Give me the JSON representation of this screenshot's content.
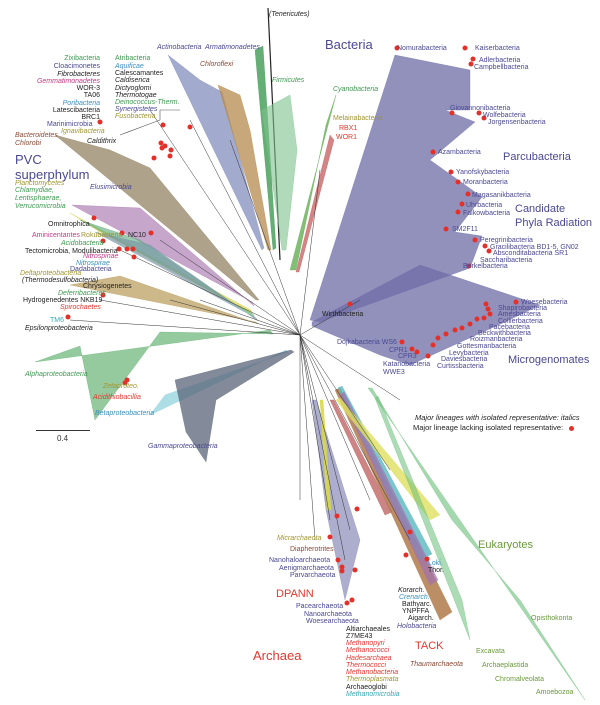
{
  "colors": {
    "purple": "#4a4893",
    "red": "#e03a2e",
    "green": "#3f9a52",
    "olive": "#a09530",
    "brown": "#8b4a36",
    "magenta": "#c43a86",
    "blue": "#3b8fbf",
    "black": "#222222",
    "teal": "#3aa8b8",
    "euk": "#6a9a3a",
    "dot": "#e5302a"
  },
  "scale": {
    "label": "0.4"
  },
  "legend": {
    "italics_note": "Major lineages with isolated representative: italics",
    "dot_note": "Major lineage lacking isolated representative:"
  },
  "labels": [
    {
      "text": "Zixibacteria",
      "color": "green"
    },
    {
      "text": "Cloacimonetes",
      "color": "purple"
    },
    {
      "text": "Fibrobacteres",
      "color": "black"
    },
    {
      "text": "Gemmatimonadetes",
      "color": "magenta"
    },
    {
      "text": "WOR-3",
      "color": "black"
    },
    {
      "text": "TA06",
      "color": "black"
    },
    {
      "text": "Poribacteria",
      "color": "blue"
    },
    {
      "text": "Latescibacteria",
      "color": "black"
    },
    {
      "text": "BRC1",
      "color": "black"
    },
    {
      "text": "Atribacteria",
      "color": "green"
    },
    {
      "text": "Aquificae",
      "color": "blue"
    },
    {
      "text": "Calescamantes",
      "color": "black"
    },
    {
      "text": "Caldiserica",
      "color": "black"
    },
    {
      "text": "Dictyoglomi",
      "color": "black"
    },
    {
      "text": "Thermotogae",
      "color": "black"
    },
    {
      "text": "Deinococcus-Therm.",
      "color": "green"
    },
    {
      "text": "Synergistetes",
      "color": "purple"
    },
    {
      "text": "Fusobacteria",
      "color": "olive"
    },
    {
      "text": "Marinimicrobia",
      "color": "purple"
    },
    {
      "text": "Ignavibacteria",
      "color": "olive"
    },
    {
      "text": "Bacteroidetes",
      "color": "brown"
    },
    {
      "text": "Chlorobi",
      "color": "brown"
    },
    {
      "text": "Caldithrix",
      "color": "black"
    },
    {
      "text": "PVC",
      "color": "purple"
    },
    {
      "text": "superphylum",
      "color": "purple"
    },
    {
      "text": "Planctomycetes",
      "color": "olive"
    },
    {
      "text": "Chlamydiae,",
      "color": "green"
    },
    {
      "text": "Lentisphaerae,",
      "color": "green"
    },
    {
      "text": "Verrucomicrobia",
      "color": "green"
    },
    {
      "text": "Elusimicrobia",
      "color": "purple"
    },
    {
      "text": "Omnitrophica",
      "color": "black"
    },
    {
      "text": "Aminicentantes",
      "color": "magenta"
    },
    {
      "text": "Rokubacteria",
      "color": "olive"
    },
    {
      "text": "NC10",
      "color": "black"
    },
    {
      "text": "Acidobacteria",
      "color": "green"
    },
    {
      "text": "Tectomicrobia, Modulibacteria",
      "color": "black"
    },
    {
      "text": "Nitrospinae",
      "color": "magenta"
    },
    {
      "text": "Nitrospirae",
      "color": "blue"
    },
    {
      "text": "Dadabacteria",
      "color": "purple"
    },
    {
      "text": "Deltaproteobacteria",
      "color": "olive"
    },
    {
      "text": "(Thermodesulfobacteria)",
      "color": "black"
    },
    {
      "text": "Chrysiogenetes",
      "color": "black"
    },
    {
      "text": "Deferribacteres",
      "color": "green"
    },
    {
      "text": "Hydrogenedentes NKB19",
      "color": "black"
    },
    {
      "text": "Spirochaetes",
      "color": "red"
    },
    {
      "text": "TM6",
      "color": "teal"
    },
    {
      "text": "Epsilonproteobacteria",
      "color": "black"
    },
    {
      "text": "Alphaproteobacteria",
      "color": "green"
    },
    {
      "text": "Zetaproteo.",
      "color": "olive"
    },
    {
      "text": "Acidithiobacillia",
      "color": "red"
    },
    {
      "text": "Betaproteobacteria",
      "color": "blue"
    },
    {
      "text": "Gammaproteobacteria",
      "color": "purple"
    },
    {
      "text": "(Tenericutes)",
      "color": "black"
    },
    {
      "text": "Actinobacteria",
      "color": "purple"
    },
    {
      "text": "Armatimonadetes",
      "color": "purple"
    },
    {
      "text": "Chloroflexi",
      "color": "brown"
    },
    {
      "text": "Bacteria",
      "color": "purple"
    },
    {
      "text": "Firmicutes",
      "color": "green"
    },
    {
      "text": "Cyanobacteria",
      "color": "green"
    },
    {
      "text": "Melainabacteria",
      "color": "olive"
    },
    {
      "text": "RBX1",
      "color": "red"
    },
    {
      "text": "WOR1",
      "color": "red"
    },
    {
      "text": "Nomurabacteria",
      "color": "purple"
    },
    {
      "text": "Kaiserbacteria",
      "color": "purple"
    },
    {
      "text": "Adlerbacteria",
      "color": "purple"
    },
    {
      "text": "Campbellbacteria",
      "color": "purple"
    },
    {
      "text": "Giovannonibacteria",
      "color": "purple"
    },
    {
      "text": "Wolfebacteria",
      "color": "purple"
    },
    {
      "text": "Jorgensenbacteria",
      "color": "purple"
    },
    {
      "text": "Parcubacteria",
      "color": "purple"
    },
    {
      "text": "Azambacteria",
      "color": "purple"
    },
    {
      "text": "Yanofskybacteria",
      "color": "purple"
    },
    {
      "text": "Moranbacteria",
      "color": "purple"
    },
    {
      "text": "Magasanikbacteria",
      "color": "purple"
    },
    {
      "text": "Uhrbacteria",
      "color": "purple"
    },
    {
      "text": "Falkowbacteria",
      "color": "purple"
    },
    {
      "text": "Candidate",
      "color": "purple"
    },
    {
      "text": "Phyla Radiation",
      "color": "purple"
    },
    {
      "text": "SM2F11",
      "color": "purple"
    },
    {
      "text": "Peregrinibacteria",
      "color": "purple"
    },
    {
      "text": "Gracilibacteria BD1-5, GN02",
      "color": "purple"
    },
    {
      "text": "Absconditabacteria SR1",
      "color": "purple"
    },
    {
      "text": "Saccharibacteria",
      "color": "purple"
    },
    {
      "text": "Berkelbacteria",
      "color": "purple"
    },
    {
      "text": "Woesebacteria",
      "color": "purple"
    },
    {
      "text": "Shapirobacteria",
      "color": "purple"
    },
    {
      "text": "Amesbacteria",
      "color": "purple"
    },
    {
      "text": "Collierbacteria",
      "color": "purple"
    },
    {
      "text": "Pacebacteria",
      "color": "purple"
    },
    {
      "text": "Beckwithbacteria",
      "color": "purple"
    },
    {
      "text": "Roizmanbacteria",
      "color": "purple"
    },
    {
      "text": "Gottesmanbacteria",
      "color": "purple"
    },
    {
      "text": "Levybacteria",
      "color": "purple"
    },
    {
      "text": "Daviesbacteria",
      "color": "purple"
    },
    {
      "text": "Curtissbacteria",
      "color": "purple"
    },
    {
      "text": "Microgenomates",
      "color": "purple"
    },
    {
      "text": "Wirthbacteria",
      "color": "black"
    },
    {
      "text": "Dojkabacteria WS6",
      "color": "purple"
    },
    {
      "text": "CPR1",
      "color": "purple"
    },
    {
      "text": "CPR3",
      "color": "purple"
    },
    {
      "text": "Katanobacteria",
      "color": "purple"
    },
    {
      "text": "WWE3",
      "color": "purple"
    },
    {
      "text": "Micrarchaeota",
      "color": "olive"
    },
    {
      "text": "Diapherotrites",
      "color": "brown"
    },
    {
      "text": "Nanohaloarchaeota",
      "color": "purple"
    },
    {
      "text": "Aenigmarchaeota",
      "color": "purple"
    },
    {
      "text": "Parvarchaeota",
      "color": "purple"
    },
    {
      "text": "DPANN",
      "color": "red"
    },
    {
      "text": "Pacearchaeota",
      "color": "purple"
    },
    {
      "text": "Nanoarchaeota",
      "color": "purple"
    },
    {
      "text": "Woesearchaeota",
      "color": "purple"
    },
    {
      "text": "Altiarchaeales",
      "color": "black"
    },
    {
      "text": "Z7ME43",
      "color": "black"
    },
    {
      "text": "Methanopyri",
      "color": "red"
    },
    {
      "text": "Methanococci",
      "color": "red"
    },
    {
      "text": "Hadesarchaea",
      "color": "red"
    },
    {
      "text": "Thermococci",
      "color": "red"
    },
    {
      "text": "Methanobacteria",
      "color": "red"
    },
    {
      "text": "Thermoplasmata",
      "color": "olive"
    },
    {
      "text": "Archaeoglobi",
      "color": "black"
    },
    {
      "text": "Methanomicrobia",
      "color": "teal"
    },
    {
      "text": "Archaea",
      "color": "red"
    },
    {
      "text": "Korarch.",
      "color": "black"
    },
    {
      "text": "Crenarch.",
      "color": "blue"
    },
    {
      "text": "Bathyarc.",
      "color": "black"
    },
    {
      "text": "YNPFFA",
      "color": "black"
    },
    {
      "text": "Aigarch.",
      "color": "black"
    },
    {
      "text": "Holobacteria",
      "color": "purple"
    },
    {
      "text": "TACK",
      "color": "red"
    },
    {
      "text": "Thaumarchaeota",
      "color": "brown"
    },
    {
      "text": "Loki.",
      "color": "blue"
    },
    {
      "text": "Thor.",
      "color": "black"
    },
    {
      "text": "Eukaryotes",
      "color": "euk"
    },
    {
      "text": "Opisthokonta",
      "color": "euk"
    },
    {
      "text": "Excavata",
      "color": "euk"
    },
    {
      "text": "Archaeplastida",
      "color": "euk"
    },
    {
      "text": "Chromalveolata",
      "color": "euk"
    },
    {
      "text": "Amoebozoa",
      "color": "euk"
    }
  ]
}
